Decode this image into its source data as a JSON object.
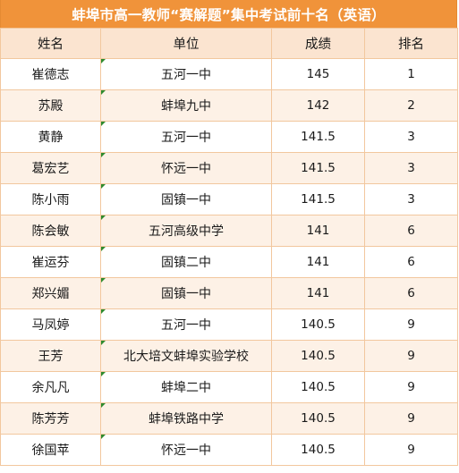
{
  "title": "蚌埠市高一教师“赛解题”集中考试前十名（英语）",
  "headers": {
    "name": "姓名",
    "unit": "单位",
    "score": "成绩",
    "rank": "排名"
  },
  "rows": [
    {
      "name": "崔德志",
      "unit": "五河一中",
      "score": "145",
      "rank": "1"
    },
    {
      "name": "苏殿",
      "unit": "蚌埠九中",
      "score": "142",
      "rank": "2"
    },
    {
      "name": "黄静",
      "unit": "五河一中",
      "score": "141.5",
      "rank": "3"
    },
    {
      "name": "葛宏艺",
      "unit": "怀远一中",
      "score": "141.5",
      "rank": "3"
    },
    {
      "name": "陈小雨",
      "unit": "固镇一中",
      "score": "141.5",
      "rank": "3"
    },
    {
      "name": "陈会敏",
      "unit": "五河高级中学",
      "score": "141",
      "rank": "6"
    },
    {
      "name": "崔运芬",
      "unit": "固镇二中",
      "score": "141",
      "rank": "6"
    },
    {
      "name": "郑兴媚",
      "unit": "固镇一中",
      "score": "141",
      "rank": "6"
    },
    {
      "name": "马凤婷",
      "unit": "五河一中",
      "score": "140.5",
      "rank": "9"
    },
    {
      "name": "王芳",
      "unit": "北大培文蚌埠实验学校",
      "score": "140.5",
      "rank": "9"
    },
    {
      "name": "余凡凡",
      "unit": "蚌埠二中",
      "score": "140.5",
      "rank": "9"
    },
    {
      "name": "陈芳芳",
      "unit": "蚌埠铁路中学",
      "score": "140.5",
      "rank": "9"
    },
    {
      "name": "徐国苹",
      "unit": "怀远一中",
      "score": "140.5",
      "rank": "9"
    }
  ],
  "colors": {
    "title_bg": "#f0933a",
    "header_bg": "#fbe4d0",
    "stripe_bg": "#fdf1e6",
    "border": "#f2c79e",
    "cell_marker": "#2e8b2e"
  }
}
